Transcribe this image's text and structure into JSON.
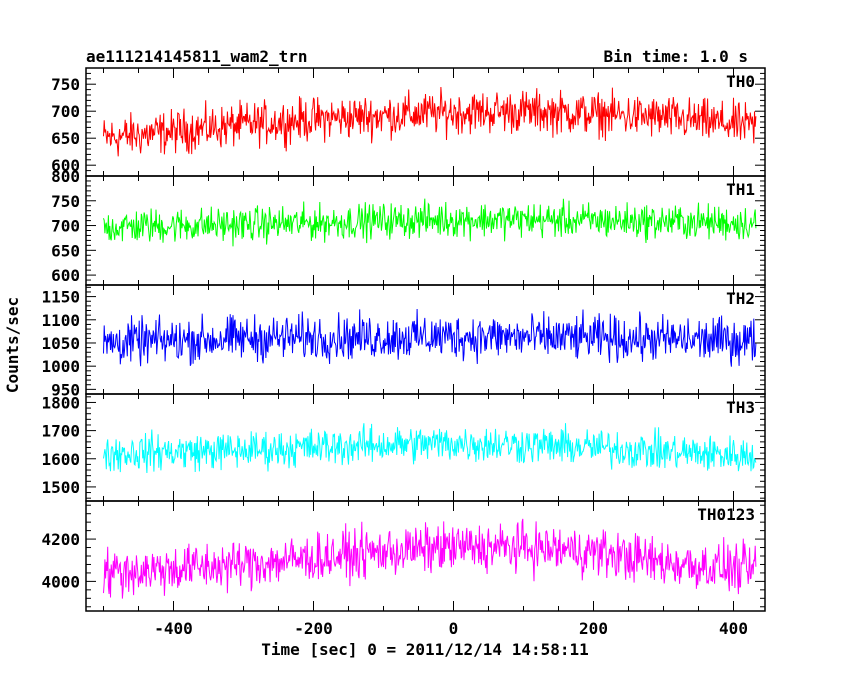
{
  "title_left": "ae111214145811_wam2_trn",
  "title_right": "Bin time: 1.0 s",
  "ylabel": "Counts/sec",
  "xlabel": "Time [sec] 0 = 2011/12/14 14:58:11",
  "chart_data": {
    "type": "line",
    "title": "ae111214145811_wam2_trn",
    "xlabel": "Time [sec] 0 = 2011/12/14 14:58:11",
    "ylabel": "Counts/sec",
    "xlim": [
      -525,
      445
    ],
    "x_range": [
      -500,
      432
    ],
    "bin_time_s": 1.0,
    "x_ticks": [
      -400,
      -200,
      0,
      200,
      400
    ],
    "grid": false,
    "panels": [
      {
        "name": "TH0",
        "color": "#ff0000",
        "ylim": [
          580,
          780
        ],
        "y_ticks": [
          600,
          650,
          700,
          750
        ],
        "x": [
          -500,
          -400,
          -300,
          -200,
          -100,
          0,
          100,
          200,
          300,
          432
        ],
        "mean": [
          650,
          662,
          675,
          685,
          692,
          698,
          700,
          695,
          688,
          672
        ],
        "noise_amplitude": 45
      },
      {
        "name": "TH1",
        "color": "#00ff00",
        "ylim": [
          580,
          800
        ],
        "y_ticks": [
          600,
          650,
          700,
          750,
          800
        ],
        "x": [
          -500,
          -400,
          -300,
          -200,
          -100,
          0,
          100,
          200,
          300,
          432
        ],
        "mean": [
          697,
          700,
          702,
          705,
          710,
          712,
          712,
          710,
          708,
          705
        ],
        "noise_amplitude": 40
      },
      {
        "name": "TH2",
        "color": "#0000ff",
        "ylim": [
          940,
          1175
        ],
        "y_ticks": [
          950,
          1000,
          1050,
          1100,
          1150
        ],
        "x": [
          -500,
          -400,
          -300,
          -200,
          -100,
          0,
          100,
          200,
          300,
          432
        ],
        "mean": [
          1050,
          1055,
          1060,
          1062,
          1062,
          1064,
          1062,
          1060,
          1058,
          1055
        ],
        "noise_amplitude": 55
      },
      {
        "name": "TH3",
        "color": "#00ffff",
        "ylim": [
          1450,
          1830
        ],
        "y_ticks": [
          1500,
          1600,
          1700,
          1800
        ],
        "x": [
          -500,
          -400,
          -300,
          -200,
          -100,
          0,
          100,
          200,
          300,
          432
        ],
        "mean": [
          1620,
          1625,
          1630,
          1640,
          1650,
          1655,
          1650,
          1640,
          1625,
          1610
        ],
        "noise_amplitude": 75
      },
      {
        "name": "TH0123",
        "color": "#ff00ff",
        "ylim": [
          3860,
          4380
        ],
        "y_ticks": [
          4000,
          4200
        ],
        "x": [
          -500,
          -400,
          -300,
          -200,
          -100,
          0,
          100,
          200,
          300,
          432
        ],
        "mean": [
          4040,
          4060,
          4080,
          4110,
          4140,
          4160,
          4160,
          4140,
          4090,
          4050
        ],
        "noise_amplitude": 130
      }
    ]
  }
}
